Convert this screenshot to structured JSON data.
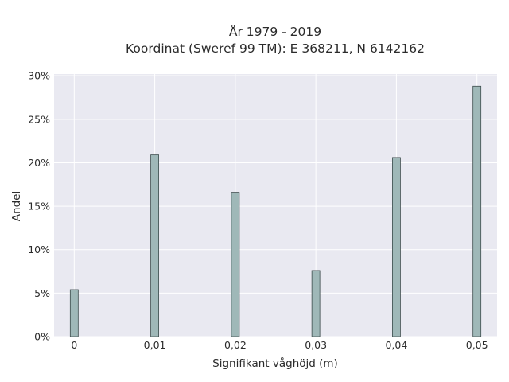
{
  "chart_data": {
    "type": "bar",
    "title_lines": [
      "År 1979 - 2019",
      "Koordinat (Sweref 99 TM): E 368211, N 6142162"
    ],
    "xlabel": "Signifikant våghöjd (m)",
    "ylabel": "Andel",
    "x": [
      0,
      0.01,
      0.02,
      0.03,
      0.04,
      0.05
    ],
    "x_tick_labels": [
      "0",
      "0,01",
      "0,02",
      "0,03",
      "0,04",
      "0,05"
    ],
    "values": [
      5.4,
      20.9,
      16.6,
      7.6,
      20.6,
      28.8
    ],
    "y_ticks": [
      0,
      5,
      10,
      15,
      20,
      25,
      30
    ],
    "y_tick_labels": [
      "0%",
      "5%",
      "10%",
      "15%",
      "20%",
      "25%",
      "30%"
    ],
    "xlim": [
      -0.0025,
      0.0525
    ],
    "ylim": [
      0,
      30.2
    ],
    "grid": true,
    "colors": {
      "plot_background": "#e9e9f1",
      "grid": "#ffffff",
      "bar_fill": "#9fb8b8",
      "bar_stroke": "#3c4c4c"
    }
  }
}
